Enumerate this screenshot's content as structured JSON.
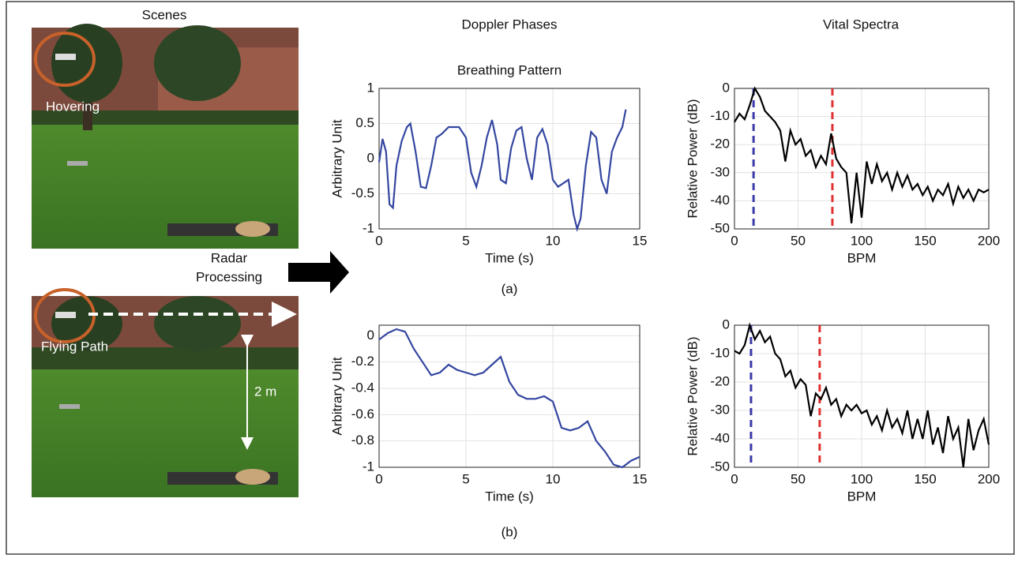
{
  "labels": {
    "scenes": "Scenes",
    "doppler": "Doppler Phases",
    "spectra": "Vital Spectra",
    "hovering": "Hovering",
    "processing": [
      "Radar",
      "Processing"
    ],
    "flying": "Flying Path",
    "distance": "2 m",
    "a": "(a)",
    "b": "(b)"
  },
  "chart_data": [
    {
      "type": "line",
      "title": "Breathing Pattern",
      "x_label": "Time (s)",
      "y_label": "Arbitrary Unit",
      "grid": true,
      "xlim": [
        0,
        15
      ],
      "ylim": [
        -1,
        1
      ],
      "xticks": [
        0,
        5,
        10,
        15
      ],
      "yticks": [
        -1,
        -0.5,
        0,
        0.5,
        1
      ],
      "x": [
        0,
        0.2,
        0.4,
        0.6,
        0.8,
        1.0,
        1.3,
        1.6,
        1.8,
        2.1,
        2.4,
        2.7,
        3.0,
        3.3,
        3.6,
        4.0,
        4.3,
        4.6,
        5.0,
        5.3,
        5.6,
        5.9,
        6.2,
        6.5,
        6.8,
        7.0,
        7.3,
        7.6,
        7.9,
        8.2,
        8.5,
        8.8,
        9.1,
        9.4,
        9.7,
        10.0,
        10.3,
        10.6,
        10.9,
        11.2,
        11.4,
        11.6,
        11.9,
        12.2,
        12.5,
        12.8,
        13.1,
        13.4,
        13.7,
        14.0,
        14.2
      ],
      "series": [
        {
          "color": "#3446a0",
          "values": [
            -0.05,
            0.28,
            0.1,
            -0.65,
            -0.7,
            -0.1,
            0.25,
            0.45,
            0.5,
            0.1,
            -0.4,
            -0.42,
            -0.1,
            0.3,
            0.35,
            0.45,
            0.45,
            0.45,
            0.3,
            -0.2,
            -0.4,
            -0.1,
            0.3,
            0.55,
            0.2,
            -0.3,
            -0.35,
            0.15,
            0.4,
            0.45,
            0.0,
            -0.3,
            0.3,
            0.42,
            0.2,
            -0.3,
            -0.4,
            -0.35,
            -0.3,
            -0.8,
            -1.0,
            -0.85,
            -0.1,
            0.38,
            0.3,
            -0.3,
            -0.5,
            0.1,
            0.3,
            0.45,
            0.7
          ]
        }
      ]
    },
    {
      "type": "line",
      "x_label": "Time (s)",
      "y_label": "Arbitrary Unit",
      "grid": true,
      "xlim": [
        0,
        15
      ],
      "ylim": [
        -1,
        0.08
      ],
      "xticks": [
        0,
        5,
        10,
        15
      ],
      "yticks": [
        -1,
        -0.8,
        -0.6,
        -0.4,
        -0.2,
        0
      ],
      "x": [
        0,
        0.5,
        1,
        1.5,
        2,
        2.5,
        3,
        3.5,
        4,
        4.5,
        5,
        5.5,
        6,
        6.5,
        7,
        7.5,
        8,
        8.5,
        9,
        9.5,
        10,
        10.5,
        11,
        11.5,
        12,
        12.5,
        13,
        13.5,
        14,
        14.5,
        15
      ],
      "series": [
        {
          "color": "#3446a0",
          "values": [
            -0.03,
            0.02,
            0.05,
            0.03,
            -0.1,
            -0.2,
            -0.3,
            -0.28,
            -0.22,
            -0.26,
            -0.28,
            -0.3,
            -0.28,
            -0.22,
            -0.16,
            -0.35,
            -0.45,
            -0.48,
            -0.48,
            -0.46,
            -0.5,
            -0.7,
            -0.72,
            -0.7,
            -0.65,
            -0.8,
            -0.88,
            -0.98,
            -1.0,
            -0.95,
            -0.92
          ]
        }
      ]
    },
    {
      "type": "line",
      "x_label": "BPM",
      "y_label": "Relative Power (dB)",
      "grid": true,
      "xlim": [
        0,
        200
      ],
      "ylim": [
        -50,
        0
      ],
      "xticks": [
        0,
        50,
        100,
        150,
        200
      ],
      "yticks": [
        -50,
        -40,
        -30,
        -20,
        -10,
        0
      ],
      "markers": [
        {
          "x": 15,
          "color": "#3a3aa8"
        },
        {
          "x": 77,
          "color": "#e03030"
        }
      ],
      "x": [
        0,
        4,
        8,
        12,
        16,
        20,
        24,
        28,
        32,
        36,
        40,
        44,
        48,
        52,
        56,
        60,
        64,
        68,
        72,
        76,
        80,
        84,
        88,
        92,
        96,
        100,
        104,
        108,
        112,
        116,
        120,
        124,
        128,
        132,
        136,
        140,
        144,
        148,
        152,
        156,
        160,
        164,
        168,
        172,
        176,
        180,
        184,
        188,
        192,
        196,
        200
      ],
      "series": [
        {
          "color": "#000000",
          "values": [
            -12,
            -9,
            -11,
            -6,
            0,
            -3,
            -8,
            -10,
            -12,
            -15,
            -26,
            -15,
            -20,
            -18,
            -24,
            -22,
            -28,
            -24,
            -27,
            -16,
            -25,
            -28,
            -30,
            -48,
            -30,
            -46,
            -26,
            -34,
            -27,
            -33,
            -30,
            -36,
            -30,
            -35,
            -31,
            -36,
            -34,
            -38,
            -35,
            -40,
            -36,
            -38,
            -34,
            -41,
            -35,
            -39,
            -36,
            -40,
            -36,
            -37,
            -36
          ]
        }
      ]
    },
    {
      "type": "line",
      "x_label": "BPM",
      "y_label": "Relative Power (dB)",
      "grid": true,
      "xlim": [
        0,
        200
      ],
      "ylim": [
        -50,
        0
      ],
      "xticks": [
        0,
        50,
        100,
        150,
        200
      ],
      "yticks": [
        -50,
        -40,
        -30,
        -20,
        -10,
        0
      ],
      "markers": [
        {
          "x": 13,
          "color": "#3a3aa8"
        },
        {
          "x": 67,
          "color": "#e03030"
        }
      ],
      "x": [
        0,
        4,
        8,
        12,
        16,
        20,
        24,
        28,
        32,
        36,
        40,
        44,
        48,
        52,
        56,
        60,
        64,
        68,
        72,
        76,
        80,
        84,
        88,
        92,
        96,
        100,
        104,
        108,
        112,
        116,
        120,
        124,
        128,
        132,
        136,
        140,
        144,
        148,
        152,
        156,
        160,
        164,
        168,
        172,
        176,
        180,
        184,
        188,
        192,
        196,
        200
      ],
      "series": [
        {
          "color": "#000000",
          "values": [
            -9,
            -10,
            -7,
            0,
            -5,
            -2,
            -6,
            -4,
            -10,
            -12,
            -18,
            -16,
            -22,
            -19,
            -21,
            -32,
            -24,
            -26,
            -22,
            -28,
            -26,
            -32,
            -28,
            -30,
            -28,
            -31,
            -30,
            -35,
            -32,
            -37,
            -30,
            -36,
            -33,
            -38,
            -30,
            -40,
            -33,
            -40,
            -30,
            -42,
            -36,
            -45,
            -32,
            -40,
            -36,
            -50,
            -33,
            -44,
            -37,
            -33,
            -42
          ]
        }
      ]
    }
  ]
}
